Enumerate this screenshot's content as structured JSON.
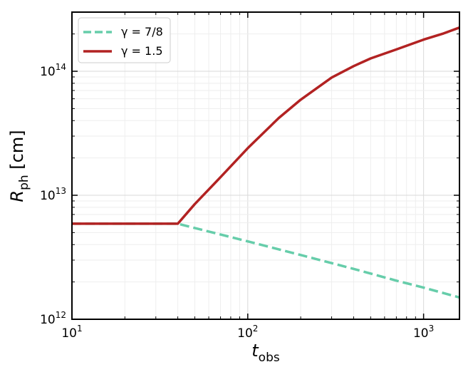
{
  "chart_data": {
    "type": "line",
    "xlabel": "t_obs",
    "ylabel": "R_ph [cm]",
    "xscale": "log",
    "yscale": "log",
    "xlim": [
      10,
      1600
    ],
    "ylim": [
      1000000000000.0,
      300000000000000.0
    ],
    "grid": true,
    "legend_position": "top-left",
    "x_tick_labels": [
      {
        "value": 10,
        "base": "10",
        "exp": "1"
      },
      {
        "value": 100,
        "base": "10",
        "exp": "2"
      },
      {
        "value": 1000,
        "base": "10",
        "exp": "3"
      }
    ],
    "y_tick_labels": [
      {
        "value": 1000000000000.0,
        "base": "10",
        "exp": "12"
      },
      {
        "value": 10000000000000.0,
        "base": "10",
        "exp": "13"
      },
      {
        "value": 100000000000000.0,
        "base": "10",
        "exp": "14"
      }
    ],
    "series": [
      {
        "name": "γ = 7/8",
        "color": "#66cdaa",
        "style": "dashed",
        "x": [
          10,
          20,
          40,
          60,
          100,
          200,
          400,
          700,
          1000,
          1600
        ],
        "y": [
          5900000000000.0,
          5900000000000.0,
          5900000000000.0,
          5100000000000.0,
          4250000000000.0,
          3300000000000.0,
          2550000000000.0,
          2050000000000.0,
          1800000000000.0,
          1500000000000.0
        ]
      },
      {
        "name": "γ = 1.5",
        "color": "#b22222",
        "style": "solid",
        "x": [
          10,
          20,
          40,
          50,
          70,
          100,
          150,
          200,
          300,
          400,
          500,
          700,
          1000,
          1300,
          1600
        ],
        "y": [
          5900000000000.0,
          5900000000000.0,
          5900000000000.0,
          8500000000000.0,
          14000000000000.0,
          24000000000000.0,
          42000000000000.0,
          59000000000000.0,
          89000000000000.0,
          110000000000000.0,
          127000000000000.0,
          150000000000000.0,
          180000000000000.0,
          202000000000000.0,
          225000000000000.0
        ]
      }
    ]
  }
}
